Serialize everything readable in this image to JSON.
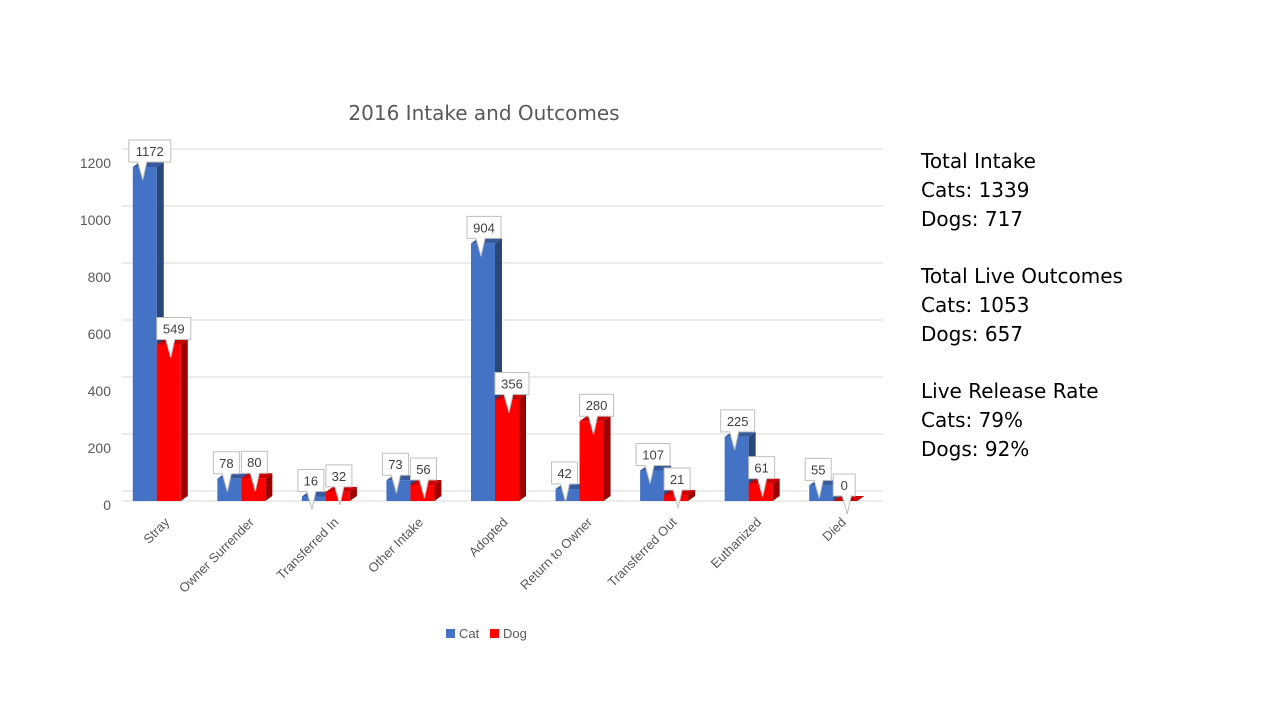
{
  "chart_data": {
    "type": "bar",
    "title": "2016 Intake and Outcomes",
    "categories": [
      "Stray",
      "Owner Surrender",
      "Transferred In",
      "Other Intake",
      "Adopted",
      "Return to Owner",
      "Transferred Out",
      "Euthanized",
      "Died"
    ],
    "series": [
      {
        "name": "Cat",
        "color": "#4472C4",
        "values": [
          1172,
          78,
          16,
          73,
          904,
          42,
          107,
          225,
          55
        ]
      },
      {
        "name": "Dog",
        "color": "#FF0000",
        "values": [
          549,
          80,
          32,
          56,
          356,
          280,
          21,
          61,
          0
        ]
      }
    ],
    "ylim": [
      0,
      1200
    ],
    "yticks": [
      0,
      200,
      400,
      600,
      800,
      1000,
      1200
    ],
    "grid": true,
    "legend": "bottom",
    "style": "3d-clustered-column"
  },
  "stats": {
    "intake": {
      "heading": "Total Intake",
      "cats": "Cats: 1339",
      "dogs": "Dogs: 717"
    },
    "live_outcomes": {
      "heading": "Total Live Outcomes",
      "cats": "Cats: 1053",
      "dogs": "Dogs: 657"
    },
    "release_rate": {
      "heading": "Live Release Rate",
      "cats": "Cats: 79%",
      "dogs": "Dogs: 92%"
    }
  }
}
